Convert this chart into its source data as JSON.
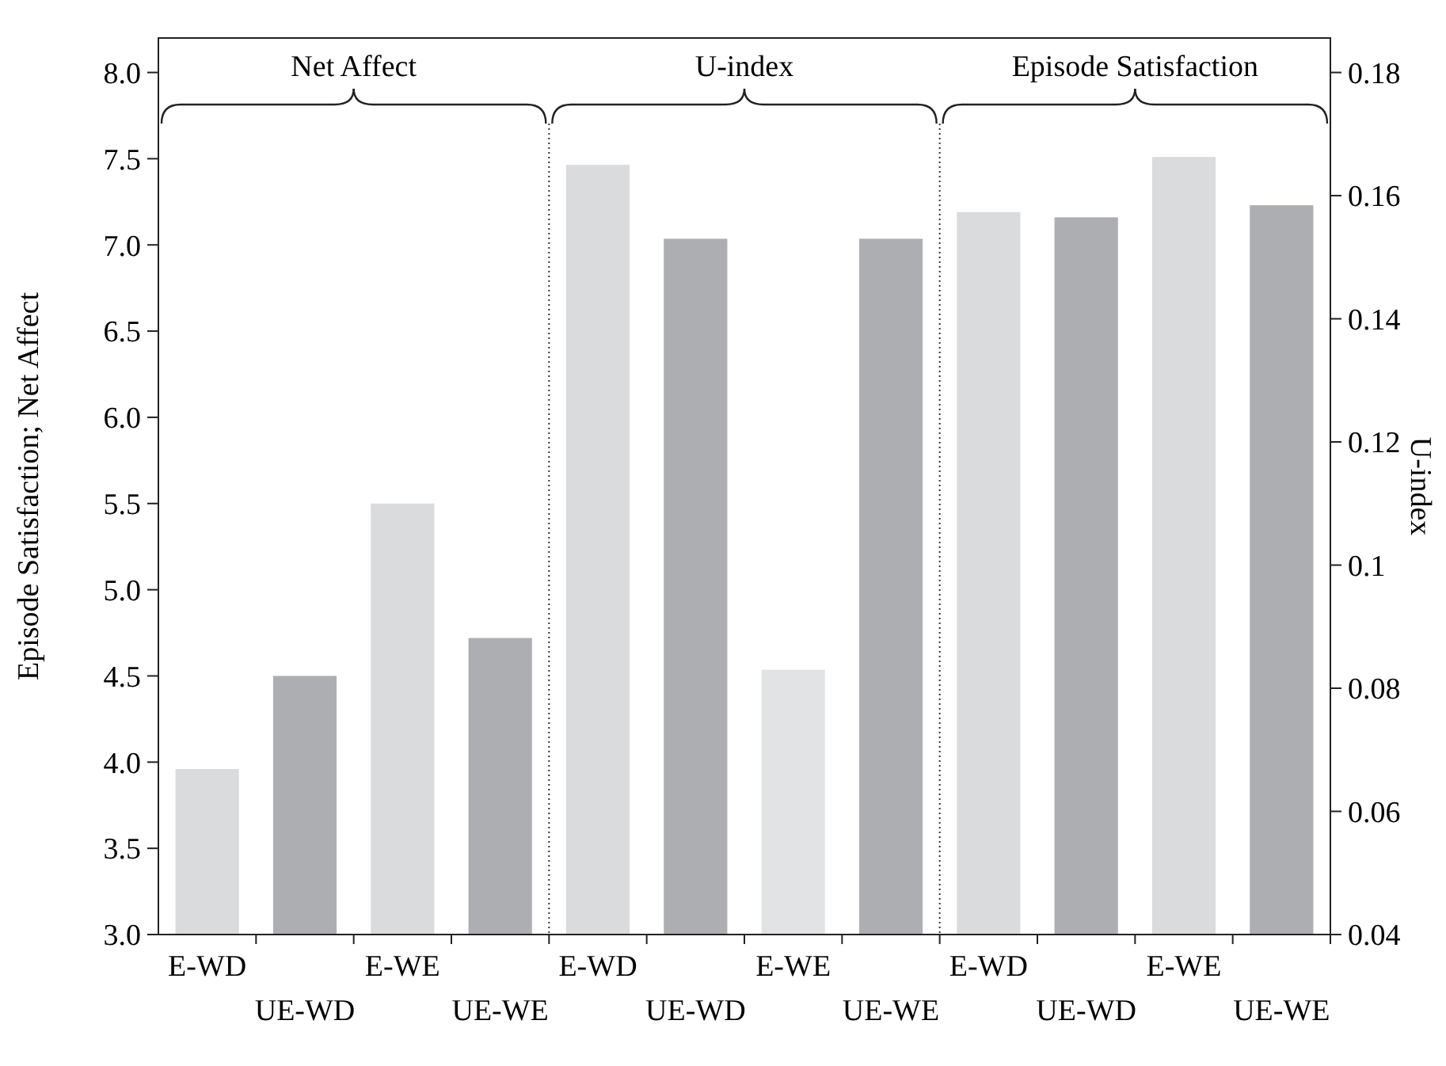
{
  "chart_data": {
    "type": "bar",
    "ylabel": "Episode Satisfaction; Net Affect",
    "y2label": "U-index",
    "categories": [
      "E-WD",
      "UE-WD",
      "E-WE",
      "UE-WE",
      "E-WD",
      "UE-WD",
      "E-WE",
      "UE-WE",
      "E-WD",
      "UE-WD",
      "E-WE",
      "UE-WE"
    ],
    "series": [
      {
        "axis": "y",
        "colors": [
          "#dadbdd",
          "#adaeb2",
          "#dadbdd",
          "#adaeb2",
          null,
          null,
          null,
          null,
          null,
          null,
          null,
          null
        ],
        "values": [
          3.96,
          4.5,
          5.5,
          4.72,
          null,
          null,
          null,
          null,
          null,
          null,
          null,
          null
        ]
      },
      {
        "axis": "y2",
        "colors": [
          null,
          null,
          null,
          null,
          "#dadbdd",
          "#adaeb2",
          "#e2e3e5",
          "#adaeb2",
          null,
          null,
          null,
          null
        ],
        "values": [
          null,
          null,
          null,
          null,
          0.165,
          0.153,
          0.083,
          0.153,
          null,
          null,
          null,
          null
        ]
      },
      {
        "axis": "y",
        "colors": [
          null,
          null,
          null,
          null,
          null,
          null,
          null,
          null,
          "#dadbdd",
          "#adaeb2",
          "#dadbdd",
          "#adaeb2"
        ],
        "values": [
          null,
          null,
          null,
          null,
          null,
          null,
          null,
          null,
          7.19,
          7.16,
          7.51,
          7.23
        ]
      }
    ],
    "ylim": [
      3,
      8.2
    ],
    "yticks": [
      {
        "value": 3,
        "label": "3.0"
      },
      3.5,
      {
        "value": 4,
        "label": "4.0"
      },
      4.5,
      {
        "value": 5,
        "label": "5.0"
      },
      5.5,
      {
        "value": 6,
        "label": "6.0"
      },
      6.5,
      {
        "value": 7,
        "label": "7.0"
      },
      7.5,
      {
        "value": 8,
        "label": "8.0"
      }
    ],
    "y2lim": [
      0.04,
      0.1856
    ],
    "y2ticks": [
      0.04,
      0.06,
      0.08,
      0.1,
      0.12,
      0.14,
      0.16,
      0.18
    ],
    "annotations": [
      "Net Affect",
      "U-index",
      "Episode Satisfaction"
    ],
    "grid": false
  }
}
